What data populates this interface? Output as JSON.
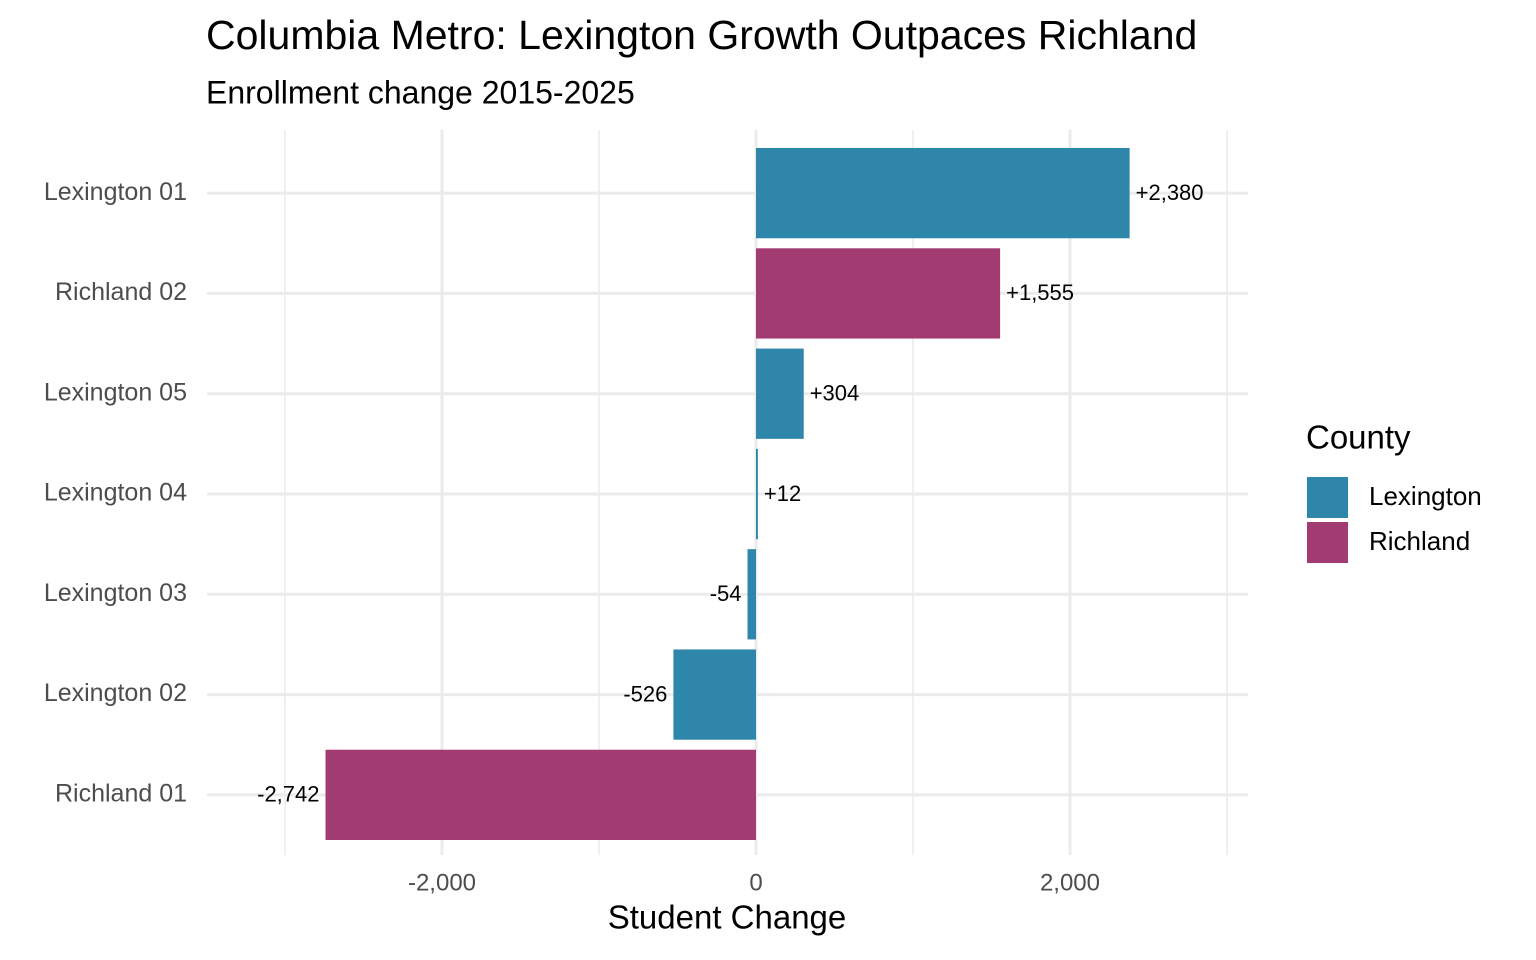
{
  "chart_data": {
    "type": "hbar",
    "title": "Columbia Metro: Lexington Growth Outpaces Richland",
    "subtitle": "Enrollment change 2015-2025",
    "xlabel": "Student Change",
    "legend_title": "County",
    "legend_position": "right",
    "grid": true,
    "categories": [
      "Lexington 01",
      "Richland 02",
      "Lexington 05",
      "Lexington 04",
      "Lexington 03",
      "Lexington 02",
      "Richland 01"
    ],
    "series": [
      {
        "name": "Lexington",
        "color": "#2E86AB",
        "values": [
          2380,
          null,
          304,
          12,
          -54,
          -526,
          null
        ],
        "value_labels": [
          "+2,380",
          null,
          "+304",
          "+12",
          "-54",
          "-526",
          null
        ]
      },
      {
        "name": "Richland",
        "color": "#A23B72",
        "values": [
          null,
          1555,
          null,
          null,
          null,
          null,
          -2742
        ],
        "value_labels": [
          null,
          "+1,555",
          null,
          null,
          null,
          null,
          "-2,742"
        ]
      }
    ],
    "xlim": [
      -3497,
      3134
    ],
    "xticks": [
      {
        "value": -2000,
        "label": "-2,000"
      },
      0,
      {
        "value": 2000,
        "label": "2,000"
      }
    ],
    "xminor_ticks": [
      -3000,
      -1000,
      1000,
      3000
    ]
  }
}
